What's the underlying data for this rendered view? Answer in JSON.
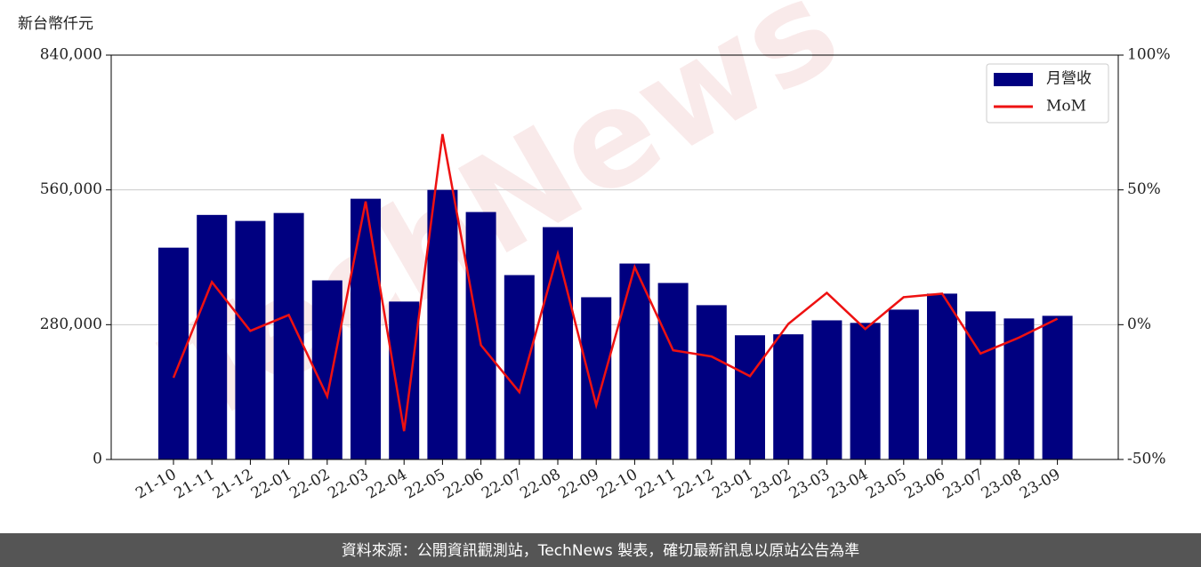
{
  "chart_data": {
    "type": "bar_line",
    "y_label": "新台幣仟元",
    "watermark": "TechNews",
    "footer": "資料來源：公開資訊觀測站，TechNews 製表，確切最新訊息以原站公告為準",
    "categories": [
      "21-10",
      "21-11",
      "21-12",
      "22-01",
      "22-02",
      "22-03",
      "22-04",
      "22-05",
      "22-06",
      "22-07",
      "22-08",
      "22-09",
      "22-10",
      "22-11",
      "22-12",
      "23-01",
      "23-02",
      "23-03",
      "23-04",
      "23-05",
      "23-06",
      "23-07",
      "23-08",
      "23-09"
    ],
    "series": [
      {
        "name": "月營收",
        "type": "bar",
        "color": "#000080",
        "values": [
          440000,
          508000,
          495500,
          512000,
          372000,
          541600,
          328000,
          560000,
          514000,
          383000,
          482600,
          337000,
          407000,
          366600,
          320500,
          258000,
          260000,
          289000,
          283700,
          311300,
          344500,
          307600,
          292900,
          298400
        ]
      },
      {
        "name": "MoM",
        "type": "line",
        "axis": "y2",
        "color": "#ee1111",
        "values": [
          -19.7,
          15.8,
          -2.3,
          3.6,
          -26.6,
          45.7,
          -39.5,
          70.7,
          -7.6,
          -25,
          26.3,
          -29.9,
          21.4,
          -9.5,
          -11.8,
          -19.1,
          0.3,
          11.8,
          -1.6,
          10.2,
          11.5,
          -10.7,
          -4.8,
          2.2
        ]
      }
    ],
    "ylim": [
      0,
      840000
    ],
    "yticks": [
      0,
      {
        "value": 280000,
        "label": "280,000"
      },
      {
        "value": 560000,
        "label": "560,000"
      },
      {
        "value": 840000,
        "label": "840,000"
      }
    ],
    "y2lim": [
      -50,
      100
    ],
    "y2ticks": [
      {
        "value": -50,
        "label": "-50%"
      },
      {
        "value": 0,
        "label": "0%"
      },
      {
        "value": 50,
        "label": "50%"
      },
      {
        "value": 100,
        "label": "100%"
      }
    ],
    "grid": true,
    "legend": "upper right"
  }
}
